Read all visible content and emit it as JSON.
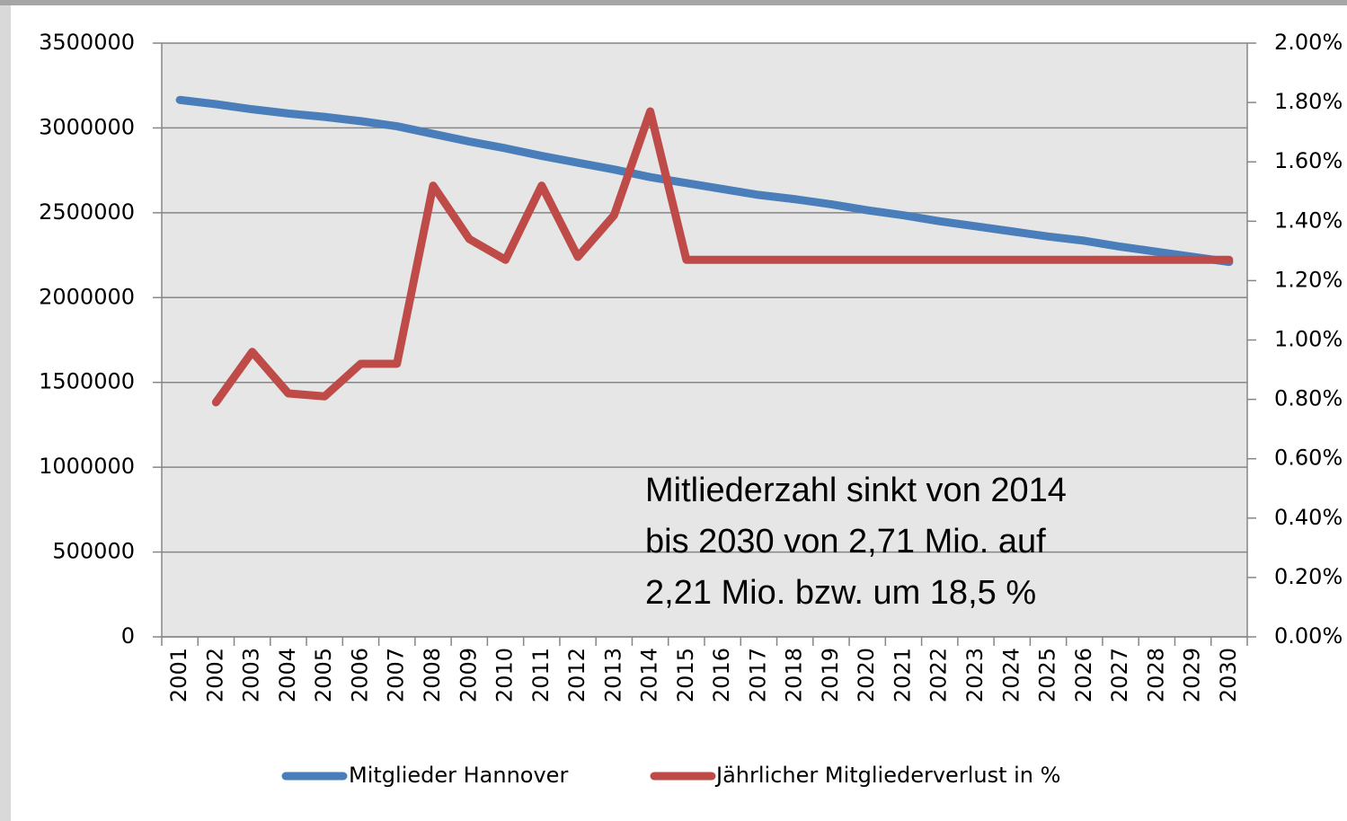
{
  "chart_data": {
    "type": "line",
    "categories": [
      "2001",
      "2002",
      "2003",
      "2004",
      "2005",
      "2006",
      "2007",
      "2008",
      "2009",
      "2010",
      "2011",
      "2012",
      "2013",
      "2014",
      "2015",
      "2016",
      "2017",
      "2018",
      "2019",
      "2020",
      "2021",
      "2022",
      "2023",
      "2024",
      "2025",
      "2026",
      "2027",
      "2028",
      "2029",
      "2030"
    ],
    "series": [
      {
        "name": "Mitglieder Hannover",
        "color": "#4a7ebb",
        "values": [
          3165000,
          3140000,
          3110000,
          3085000,
          3065000,
          3040000,
          3010000,
          2965000,
          2920000,
          2880000,
          2835000,
          2795000,
          2755000,
          2710000,
          2675000,
          2640000,
          2605000,
          2580000,
          2550000,
          2515000,
          2485000,
          2450000,
          2420000,
          2390000,
          2360000,
          2335000,
          2300000,
          2270000,
          2240000,
          2210000
        ]
      },
      {
        "name": "Jährlicher Mitgliederverlust in %",
        "color": "#be4b48",
        "axis": "y2",
        "values": [
          null,
          0.79,
          0.96,
          0.82,
          0.81,
          0.92,
          0.92,
          1.52,
          1.34,
          1.27,
          1.52,
          1.28,
          1.42,
          1.77,
          1.27,
          1.27,
          1.27,
          1.27,
          1.27,
          1.27,
          1.27,
          1.27,
          1.27,
          1.27,
          1.27,
          1.27,
          1.27,
          1.27,
          1.27,
          1.27
        ]
      }
    ],
    "ylim": [
      0,
      3500000
    ],
    "yticks": [
      0,
      500000,
      1000000,
      1500000,
      2000000,
      2500000,
      3000000,
      3500000
    ],
    "y2lim": [
      0,
      2
    ],
    "y2ticks": [
      {
        "value": 0,
        "label": "0.00%"
      },
      {
        "value": 0.2,
        "label": "0.20%"
      },
      {
        "value": 0.4,
        "label": "0.40%"
      },
      {
        "value": 0.6,
        "label": "0.60%"
      },
      {
        "value": 0.8,
        "label": "0.80%"
      },
      {
        "value": 1,
        "label": "1.00%"
      },
      {
        "value": 1.2,
        "label": "1.20%"
      },
      {
        "value": 1.4,
        "label": "1.40%"
      },
      {
        "value": 1.6,
        "label": "1.60%"
      },
      {
        "value": 1.8,
        "label": "1.80%"
      },
      {
        "value": 2,
        "label": "2.00%"
      }
    ],
    "grid": true,
    "legend": "bottom",
    "annotation": [
      "Mitliederzahl sinkt von 2014",
      "bis 2030 von 2,71 Mio. auf",
      "2,21 Mio. bzw. um 18,5 %"
    ]
  }
}
